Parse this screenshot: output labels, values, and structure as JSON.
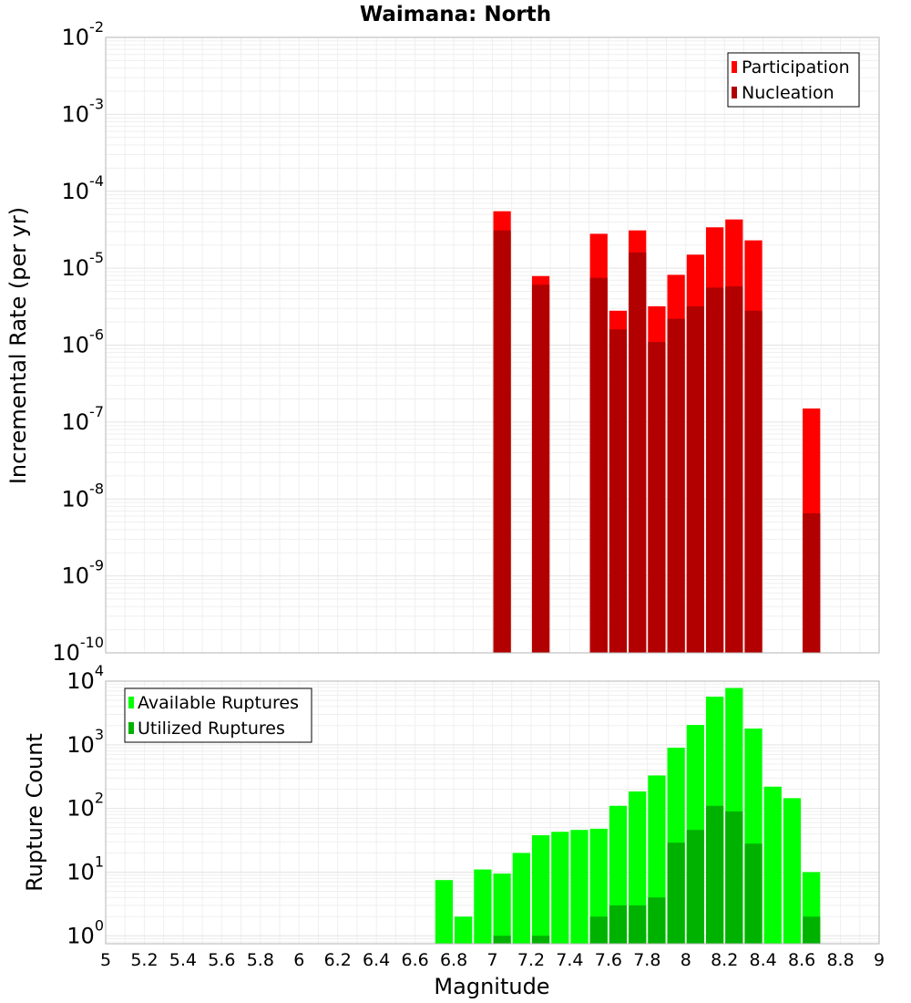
{
  "chart_data": [
    {
      "type": "bar",
      "title": "Waimana: North",
      "xlabel": "",
      "ylabel": "Incremental Rate (per yr)",
      "xlim": [
        5,
        9
      ],
      "ylim": [
        1e-10,
        0.01
      ],
      "y_scale": "log",
      "bar_width": 0.1,
      "grid": true,
      "legend_position": "top-right",
      "y_ticks": [
        {
          "base": "10",
          "exp": "-10",
          "value": 1e-10
        },
        {
          "base": "10",
          "exp": "-9",
          "value": 1e-09
        },
        {
          "base": "10",
          "exp": "-8",
          "value": 1e-08
        },
        {
          "base": "10",
          "exp": "-7",
          "value": 1e-07
        },
        {
          "base": "10",
          "exp": "-6",
          "value": 1e-06
        },
        {
          "base": "10",
          "exp": "-5",
          "value": 1e-05
        },
        {
          "base": "10",
          "exp": "-4",
          "value": 0.0001
        },
        {
          "base": "10",
          "exp": "-3",
          "value": 0.001
        },
        {
          "base": "10",
          "exp": "-2",
          "value": 0.01
        }
      ],
      "series": [
        {
          "name": "Participation",
          "color": "#ff0000",
          "x": [
            7.05,
            7.25,
            7.55,
            7.65,
            7.75,
            7.85,
            7.95,
            8.05,
            8.15,
            8.25,
            8.35,
            8.65
          ],
          "values": [
            5.5e-05,
            7.9e-06,
            2.8e-05,
            2.8e-06,
            3.1e-05,
            3.2e-06,
            8.2e-06,
            1.5e-05,
            3.4e-05,
            4.3e-05,
            2.3e-05,
            1.5e-07
          ]
        },
        {
          "name": "Nucleation",
          "color": "#b20000",
          "x": [
            7.05,
            7.25,
            7.55,
            7.65,
            7.75,
            7.85,
            7.95,
            8.05,
            8.15,
            8.25,
            8.35,
            8.65
          ],
          "values": [
            3.1e-05,
            6.1e-06,
            7.5e-06,
            1.6e-06,
            1.6e-05,
            1.1e-06,
            2.2e-06,
            3.2e-06,
            5.6e-06,
            5.8e-06,
            2.8e-06,
            6.5e-09
          ]
        }
      ]
    },
    {
      "type": "bar",
      "title": "",
      "xlabel": "Magnitude",
      "ylabel": "Rupture Count",
      "xlim": [
        5,
        9
      ],
      "ylim": [
        0.75,
        10000
      ],
      "y_scale": "log",
      "bar_width": 0.1,
      "grid": true,
      "legend_position": "top-left",
      "x_ticks": [
        "5",
        "5.2",
        "5.4",
        "5.6",
        "5.8",
        "6",
        "6.2",
        "6.4",
        "6.6",
        "6.8",
        "7",
        "7.2",
        "7.4",
        "7.6",
        "7.8",
        "8",
        "8.2",
        "8.4",
        "8.6",
        "8.8",
        "9"
      ],
      "y_ticks": [
        {
          "base": "10",
          "exp": "0",
          "value": 1
        },
        {
          "base": "10",
          "exp": "1",
          "value": 10
        },
        {
          "base": "10",
          "exp": "2",
          "value": 100
        },
        {
          "base": "10",
          "exp": "3",
          "value": 1000
        },
        {
          "base": "10",
          "exp": "4",
          "value": 10000
        }
      ],
      "series": [
        {
          "name": "Available Ruptures",
          "color": "#00ff00",
          "x": [
            6.75,
            6.85,
            6.95,
            7.05,
            7.15,
            7.25,
            7.35,
            7.45,
            7.55,
            7.65,
            7.75,
            7.85,
            7.95,
            8.05,
            8.15,
            8.25,
            8.35,
            8.45,
            8.55,
            8.65
          ],
          "values": [
            7.5,
            2,
            11,
            9.5,
            20,
            38,
            43,
            46,
            48,
            110,
            185,
            330,
            900,
            2050,
            5700,
            7800,
            1800,
            220,
            145,
            10
          ]
        },
        {
          "name": "Utilized Ruptures",
          "color": "#00b200",
          "x": [
            7.05,
            7.25,
            7.55,
            7.65,
            7.75,
            7.85,
            7.95,
            8.05,
            8.15,
            8.25,
            8.35,
            8.65
          ],
          "values": [
            1,
            1,
            2,
            3,
            3,
            4,
            29,
            46,
            110,
            90,
            28,
            2
          ]
        }
      ]
    }
  ]
}
